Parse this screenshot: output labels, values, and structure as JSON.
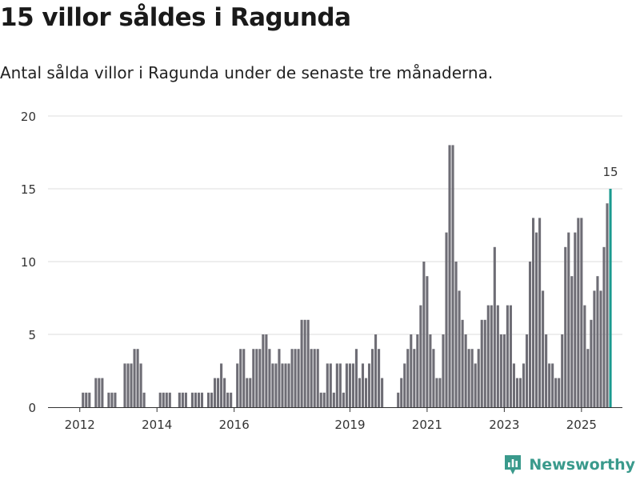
{
  "title": "15 villor såldes i Ragunda",
  "subtitle": "Antal sålda villor i Ragunda under de senaste tre månaderna.",
  "brand": {
    "name": "Newsworthy",
    "icon": "newsworthy-logo-icon",
    "color": "#3a9a8c"
  },
  "chart_data": {
    "type": "bar",
    "title": "15 villor såldes i Ragunda",
    "xlabel": "",
    "ylabel": "",
    "ylim": [
      0,
      20
    ],
    "yticks": [
      0,
      5,
      10,
      15,
      20
    ],
    "grid": true,
    "bar_color": "#6e6d75",
    "highlight_color": "#1a9a8f",
    "highlight_label": "15",
    "x_tick_labels": [
      {
        "label": "2012",
        "index": 9
      },
      {
        "label": "2014",
        "index": 33
      },
      {
        "label": "2016",
        "index": 57
      },
      {
        "label": "2019",
        "index": 93
      },
      {
        "label": "2021",
        "index": 117
      },
      {
        "label": "2023",
        "index": 141
      },
      {
        "label": "2025",
        "index": 165
      }
    ],
    "values": [
      0,
      0,
      0,
      0,
      0,
      0,
      0,
      0,
      0,
      0,
      1,
      1,
      1,
      0,
      2,
      2,
      2,
      0,
      1,
      1,
      1,
      0,
      0,
      3,
      3,
      3,
      4,
      4,
      3,
      1,
      0,
      0,
      0,
      0,
      1,
      1,
      1,
      1,
      0,
      0,
      1,
      1,
      1,
      0,
      1,
      1,
      1,
      1,
      0,
      1,
      1,
      2,
      2,
      3,
      2,
      1,
      1,
      0,
      3,
      4,
      4,
      2,
      2,
      4,
      4,
      4,
      5,
      5,
      4,
      3,
      3,
      4,
      3,
      3,
      3,
      4,
      4,
      4,
      6,
      6,
      6,
      4,
      4,
      4,
      1,
      1,
      3,
      3,
      1,
      3,
      3,
      1,
      3,
      3,
      3,
      4,
      2,
      3,
      2,
      3,
      4,
      5,
      4,
      2,
      0,
      0,
      0,
      0,
      1,
      2,
      3,
      4,
      5,
      4,
      5,
      7,
      10,
      9,
      5,
      4,
      2,
      2,
      5,
      12,
      18,
      18,
      10,
      8,
      6,
      5,
      4,
      4,
      3,
      4,
      6,
      6,
      7,
      7,
      11,
      7,
      5,
      5,
      7,
      7,
      3,
      2,
      2,
      3,
      5,
      10,
      13,
      12,
      13,
      8,
      5,
      3,
      3,
      2,
      2,
      5,
      11,
      12,
      9,
      12,
      13,
      13,
      7,
      4,
      6,
      8,
      9,
      8,
      11,
      14,
      15
    ]
  }
}
